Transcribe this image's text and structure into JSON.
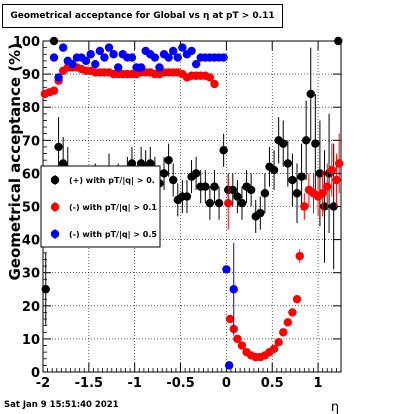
{
  "chart_data": {
    "type": "scatter",
    "title": "Geometrical acceptance for Global vs  η at pT > 0.11",
    "xlabel": "η",
    "ylabel": "Geometrical acceptance (%)",
    "xlim": [
      -2,
      1.25
    ],
    "ylim": [
      0,
      100
    ],
    "xticks": [
      "-2",
      "-1.5",
      "-1",
      "-0.5",
      "0",
      "0.5",
      "1"
    ],
    "yticks": [
      "0",
      "10",
      "20",
      "30",
      "40",
      "50",
      "60",
      "70",
      "80",
      "90",
      "100"
    ],
    "grid": true,
    "legend_position": "left",
    "series": [
      {
        "name": "(+) with pT/|q| > 0.",
        "color": "#000000",
        "points": [
          [
            -1.97,
            25
          ],
          [
            -1.88,
            100
          ],
          [
            -1.83,
            68
          ],
          [
            -1.78,
            63
          ],
          [
            -1.73,
            60
          ],
          [
            -1.68,
            47
          ],
          [
            -1.63,
            54
          ],
          [
            -1.58,
            52
          ],
          [
            -1.53,
            55
          ],
          [
            -1.48,
            56
          ],
          [
            -1.43,
            57
          ],
          [
            -1.38,
            55
          ],
          [
            -1.33,
            53
          ],
          [
            -1.28,
            60
          ],
          [
            -1.23,
            57
          ],
          [
            -1.18,
            58
          ],
          [
            -1.13,
            56
          ],
          [
            -1.08,
            60
          ],
          [
            -1.03,
            63
          ],
          [
            -0.98,
            55
          ],
          [
            -0.93,
            63
          ],
          [
            -0.88,
            62
          ],
          [
            -0.83,
            63
          ],
          [
            -0.78,
            60
          ],
          [
            -0.73,
            57
          ],
          [
            -0.68,
            60
          ],
          [
            -0.63,
            64
          ],
          [
            -0.58,
            58
          ],
          [
            -0.53,
            52
          ],
          [
            -0.48,
            53
          ],
          [
            -0.43,
            53
          ],
          [
            -0.38,
            59
          ],
          [
            -0.33,
            60
          ],
          [
            -0.28,
            56
          ],
          [
            -0.23,
            56
          ],
          [
            -0.18,
            51
          ],
          [
            -0.13,
            56
          ],
          [
            -0.08,
            51
          ],
          [
            -0.03,
            67
          ],
          [
            0.02,
            55
          ],
          [
            0.07,
            55
          ],
          [
            0.12,
            53
          ],
          [
            0.17,
            51
          ],
          [
            0.22,
            56
          ],
          [
            0.27,
            55
          ],
          [
            0.32,
            47
          ],
          [
            0.37,
            48
          ],
          [
            0.42,
            54
          ],
          [
            0.47,
            62
          ],
          [
            0.52,
            61
          ],
          [
            0.57,
            70
          ],
          [
            0.62,
            69
          ],
          [
            0.67,
            63
          ],
          [
            0.72,
            58
          ],
          [
            0.77,
            54
          ],
          [
            0.82,
            59
          ],
          [
            0.87,
            70
          ],
          [
            0.92,
            84
          ],
          [
            0.97,
            69
          ],
          [
            1.02,
            60
          ],
          [
            1.07,
            50
          ],
          [
            1.12,
            60
          ],
          [
            1.17,
            50
          ],
          [
            1.22,
            100
          ]
        ],
        "errors": [
          11,
          0,
          9,
          8,
          8,
          8,
          7,
          7,
          7,
          6,
          6,
          6,
          6,
          6,
          5,
          5,
          5,
          5,
          5,
          5,
          5,
          5,
          5,
          5,
          5,
          5,
          5,
          5,
          5,
          5,
          5,
          5,
          5,
          5,
          5,
          5,
          5,
          5,
          5,
          5,
          5,
          5,
          5,
          5,
          5,
          5,
          5,
          6,
          6,
          6,
          7,
          7,
          7,
          8,
          9,
          10,
          12,
          14,
          15,
          16,
          17,
          18,
          19,
          0
        ]
      },
      {
        "name": "(-) with pT/|q| > 0.1",
        "color": "#ff0000",
        "points": [
          [
            -1.98,
            84
          ],
          [
            -1.93,
            84.5
          ],
          [
            -1.88,
            85
          ],
          [
            -1.83,
            88
          ],
          [
            -1.78,
            91
          ],
          [
            -1.73,
            92
          ],
          [
            -1.68,
            92
          ],
          [
            -1.63,
            92
          ],
          [
            -1.58,
            91.5
          ],
          [
            -1.53,
            91
          ],
          [
            -1.48,
            91
          ],
          [
            -1.43,
            90.5
          ],
          [
            -1.38,
            90.5
          ],
          [
            -1.33,
            90.5
          ],
          [
            -1.28,
            90.5
          ],
          [
            -1.23,
            90
          ],
          [
            -1.18,
            90
          ],
          [
            -1.13,
            90
          ],
          [
            -1.08,
            90
          ],
          [
            -1.03,
            90
          ],
          [
            -0.98,
            90
          ],
          [
            -0.93,
            90.5
          ],
          [
            -0.88,
            90.5
          ],
          [
            -0.83,
            90.5
          ],
          [
            -0.78,
            90
          ],
          [
            -0.73,
            90
          ],
          [
            -0.68,
            90.5
          ],
          [
            -0.63,
            90.5
          ],
          [
            -0.58,
            90.5
          ],
          [
            -0.53,
            90.5
          ],
          [
            -0.48,
            90
          ],
          [
            -0.43,
            89
          ],
          [
            -0.38,
            89.5
          ],
          [
            -0.33,
            89.5
          ],
          [
            -0.28,
            89.5
          ],
          [
            -0.23,
            89.5
          ],
          [
            -0.18,
            89
          ],
          [
            -0.13,
            87
          ],
          [
            0.02,
            51
          ],
          [
            0.04,
            16
          ],
          [
            0.08,
            13
          ],
          [
            0.12,
            10
          ],
          [
            0.17,
            8
          ],
          [
            0.22,
            6
          ],
          [
            0.27,
            5
          ],
          [
            0.32,
            4.5
          ],
          [
            0.37,
            4.5
          ],
          [
            0.42,
            5
          ],
          [
            0.47,
            6
          ],
          [
            0.52,
            7
          ],
          [
            0.57,
            9
          ],
          [
            0.62,
            12
          ],
          [
            0.67,
            15
          ],
          [
            0.72,
            18
          ],
          [
            0.77,
            22
          ],
          [
            0.8,
            35
          ],
          [
            0.85,
            50
          ],
          [
            0.9,
            55
          ],
          [
            0.95,
            54
          ],
          [
            1.0,
            53
          ],
          [
            1.05,
            54
          ],
          [
            1.1,
            56
          ],
          [
            1.15,
            61
          ],
          [
            1.2,
            58
          ],
          [
            1.23,
            63
          ]
        ],
        "errors": [
          0,
          0,
          0,
          0,
          0,
          0,
          0,
          0,
          0,
          0,
          0,
          0,
          0,
          0,
          0,
          0,
          0,
          0,
          0,
          0,
          0,
          0,
          0,
          0,
          0,
          0,
          0,
          0,
          0,
          0,
          0,
          0,
          0,
          0,
          0,
          0,
          0,
          0,
          8,
          0,
          0,
          0,
          0,
          0,
          0,
          0,
          0,
          0,
          0,
          0,
          0,
          0,
          0,
          0,
          0,
          2,
          4,
          5,
          6,
          6,
          7,
          7,
          8,
          8,
          9
        ]
      },
      {
        "name": "(-) with pT/|q| > 0.5",
        "color": "#0000ff",
        "points": [
          [
            -1.88,
            95
          ],
          [
            -1.83,
            89
          ],
          [
            -1.78,
            98
          ],
          [
            -1.73,
            94
          ],
          [
            -1.68,
            93
          ],
          [
            -1.63,
            95
          ],
          [
            -1.58,
            95
          ],
          [
            -1.53,
            94
          ],
          [
            -1.48,
            96
          ],
          [
            -1.43,
            93
          ],
          [
            -1.38,
            97
          ],
          [
            -1.33,
            95
          ],
          [
            -1.28,
            98
          ],
          [
            -1.23,
            96
          ],
          [
            -1.18,
            92
          ],
          [
            -1.13,
            96
          ],
          [
            -1.08,
            95
          ],
          [
            -1.03,
            95
          ],
          [
            -0.98,
            92
          ],
          [
            -0.93,
            92
          ],
          [
            -0.88,
            97
          ],
          [
            -0.83,
            96
          ],
          [
            -0.78,
            95
          ],
          [
            -0.73,
            92
          ],
          [
            -0.68,
            96
          ],
          [
            -0.63,
            95
          ],
          [
            -0.58,
            97
          ],
          [
            -0.53,
            95
          ],
          [
            -0.48,
            98
          ],
          [
            -0.43,
            96
          ],
          [
            -0.38,
            97
          ],
          [
            -0.33,
            93
          ],
          [
            -0.28,
            95
          ],
          [
            -0.23,
            95
          ],
          [
            -0.18,
            95
          ],
          [
            -0.13,
            95
          ],
          [
            -0.08,
            95
          ],
          [
            -0.03,
            95
          ],
          [
            0.0,
            31
          ],
          [
            0.03,
            2
          ],
          [
            0.08,
            25
          ]
        ],
        "errors": [
          0,
          0,
          0,
          0,
          0,
          0,
          0,
          0,
          0,
          0,
          0,
          0,
          0,
          0,
          0,
          0,
          0,
          0,
          0,
          0,
          0,
          0,
          0,
          0,
          0,
          0,
          0,
          0,
          0,
          0,
          0,
          0,
          0,
          0,
          0,
          0,
          0,
          0,
          0,
          0,
          14
        ]
      }
    ]
  },
  "footer": "Sat Jan  9 15:51:40 2021"
}
